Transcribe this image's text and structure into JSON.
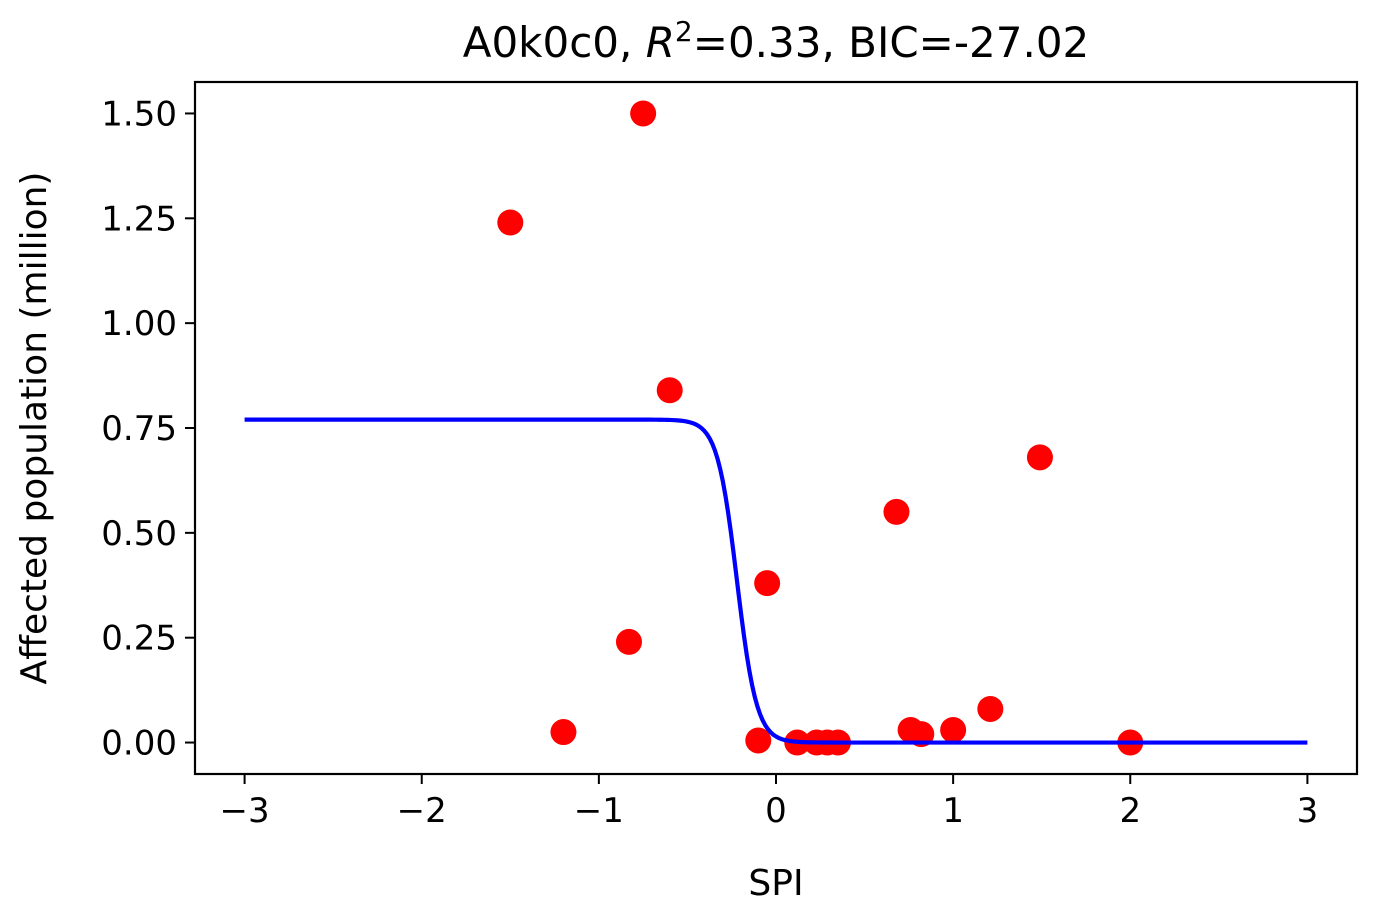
{
  "chart_data": {
    "type": "scatter",
    "title_prefix": "A0k0c0, ",
    "title_r": "R",
    "title_sup": "2",
    "title_suffix": "=0.33, BIC=-27.02",
    "xlabel": "SPI",
    "ylabel": "Affected population (million)",
    "xlim": [
      -3.28,
      3.28
    ],
    "ylim": [
      -0.075,
      1.575
    ],
    "xticks": [
      -3,
      -2,
      -1,
      0,
      1,
      2,
      3
    ],
    "xtick_labels": [
      "−3",
      "−2",
      "−1",
      "0",
      "1",
      "2",
      "3"
    ],
    "yticks": [
      0.0,
      0.25,
      0.5,
      0.75,
      1.0,
      1.25,
      1.5
    ],
    "ytick_labels": [
      "0.00",
      "0.25",
      "0.50",
      "0.75",
      "1.00",
      "1.25",
      "1.50"
    ],
    "grid": false,
    "series": [
      {
        "kind": "scatter",
        "color": "#ff0000",
        "x": [
          -0.75,
          -1.5,
          -0.6,
          0.68,
          1.49,
          -0.05,
          -0.83,
          -1.2,
          -0.1,
          0.12,
          0.23,
          0.29,
          0.35,
          0.76,
          0.82,
          1.0,
          1.21,
          2.0
        ],
        "y": [
          1.5,
          1.24,
          0.84,
          0.55,
          0.68,
          0.38,
          0.24,
          0.025,
          0.005,
          0.0,
          0.0,
          0.0,
          0.0,
          0.03,
          0.02,
          0.03,
          0.08,
          0.0
        ]
      },
      {
        "kind": "line",
        "color": "#0000ff",
        "curve": {
          "type": "logistic",
          "amplitude": 0.77,
          "center": -0.22,
          "steepness": 18
        },
        "x_range": [
          -3,
          3
        ]
      }
    ]
  }
}
